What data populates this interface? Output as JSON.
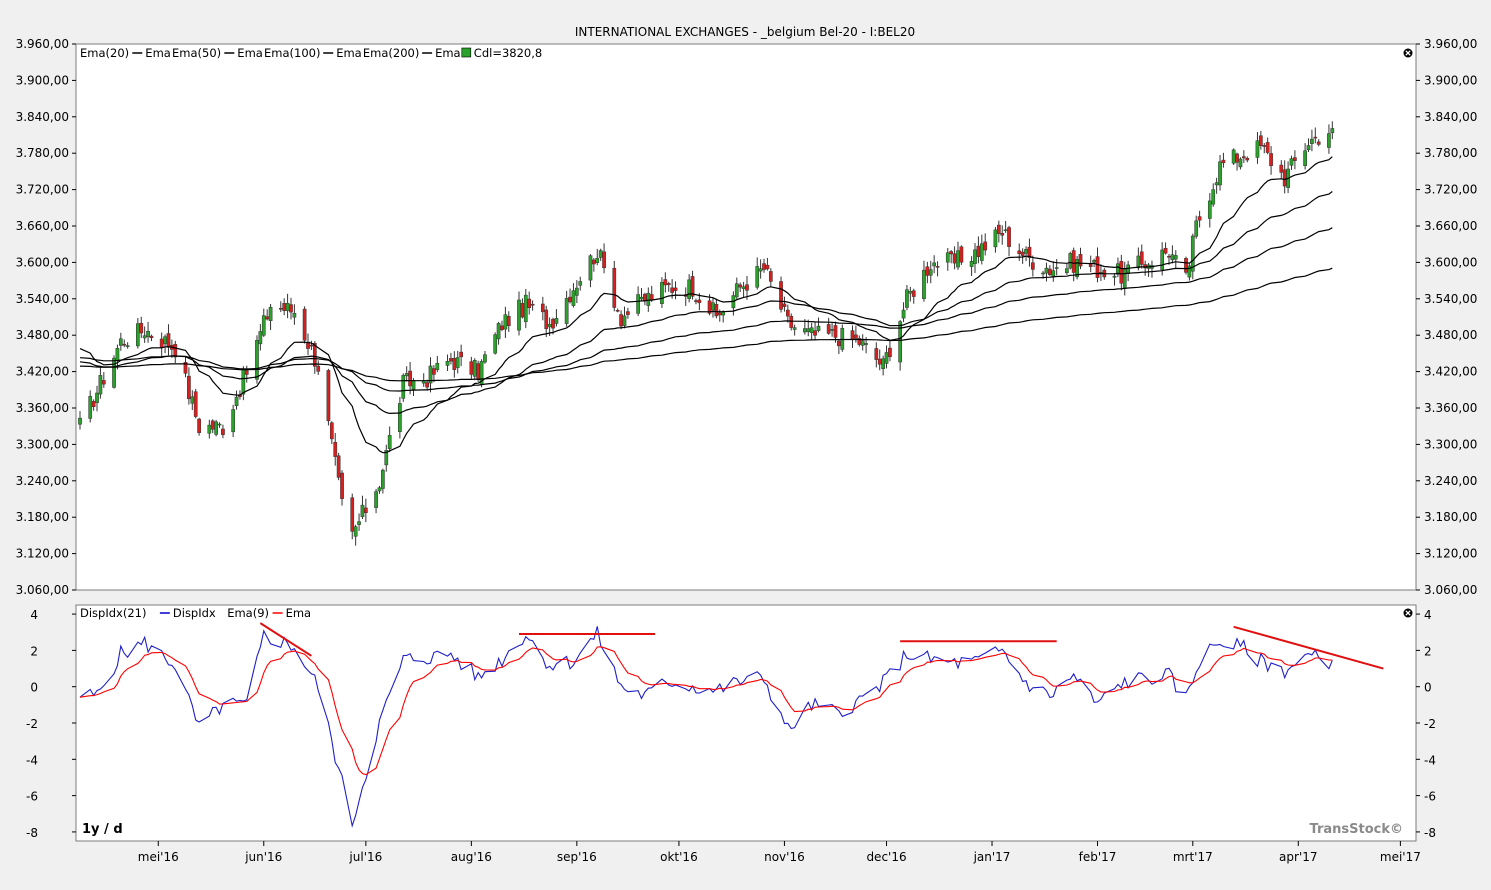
{
  "title": "INTERNATIONAL EXCHANGES - _belgium Bel-20 - I:BEL20",
  "period_label": "1y / d",
  "brand": "TransStock©",
  "price_panel": {
    "legend": [
      {
        "name": "Ema(20)",
        "suffix": "Ema",
        "color": "#000000"
      },
      {
        "name": "Ema(50)",
        "suffix": "Ema",
        "color": "#000000"
      },
      {
        "name": "Ema(100)",
        "suffix": "Ema",
        "color": "#000000"
      },
      {
        "name": "Ema(200)",
        "suffix": "Ema",
        "color": "#000000"
      },
      {
        "name": "Cdl=3820,8",
        "suffix": "",
        "color": "#2aa12a"
      }
    ],
    "y_ticks": [
      "3.960,00",
      "3.900,00",
      "3.840,00",
      "3.780,00",
      "3.720,00",
      "3.660,00",
      "3.600,00",
      "3.540,00",
      "3.480,00",
      "3.420,00",
      "3.360,00",
      "3.300,00",
      "3.240,00",
      "3.180,00",
      "3.120,00",
      "3.060,00"
    ]
  },
  "indicator_panel": {
    "legend": [
      {
        "name": "DispIdx(21)",
        "suffix": "DispIdx",
        "color": "#0000cc"
      },
      {
        "name": "Ema(9)",
        "suffix": "Ema",
        "color": "#ff0000"
      }
    ],
    "y_ticks": [
      "4",
      "2",
      "0",
      "-2",
      "-4",
      "-6",
      "-8"
    ]
  },
  "x_ticks": [
    "mei'16",
    "jun'16",
    "jul'16",
    "aug'16",
    "sep'16",
    "okt'16",
    "nov'16",
    "dec'16",
    "jan'17",
    "feb'17",
    "mrt'17",
    "apr'17",
    "mei'17"
  ],
  "colors": {
    "up": "#2aa12a",
    "down": "#d62020",
    "ema": "#000000",
    "disp": "#2020c8",
    "disp_ema": "#ff0000",
    "trendline": "#e01010"
  },
  "chart_data": [
    {
      "type": "candlestick",
      "title": "INTERNATIONAL EXCHANGES - _belgium Bel-20 - I:BEL20",
      "ylim": [
        3060,
        3960
      ],
      "x_range": [
        "2016-04-08",
        "2017-05-05"
      ],
      "last_close": 3820.8,
      "series": [
        {
          "name": "Ema(20)"
        },
        {
          "name": "Ema(50)"
        },
        {
          "name": "Ema(100)"
        },
        {
          "name": "Ema(200)"
        },
        {
          "name": "Cdl",
          "close_anchors": [
            [
              "2016-04-08",
              3330
            ],
            [
              "2016-04-20",
              3470
            ],
            [
              "2016-04-27",
              3490
            ],
            [
              "2016-05-06",
              3460
            ],
            [
              "2016-05-13",
              3330
            ],
            [
              "2016-05-20",
              3330
            ],
            [
              "2016-05-27",
              3420
            ],
            [
              "2016-06-03",
              3530
            ],
            [
              "2016-06-10",
              3520
            ],
            [
              "2016-06-17",
              3430
            ],
            [
              "2016-06-24",
              3200
            ],
            [
              "2016-06-27",
              3150
            ],
            [
              "2016-07-05",
              3240
            ],
            [
              "2016-07-12",
              3400
            ],
            [
              "2016-07-19",
              3410
            ],
            [
              "2016-07-26",
              3440
            ],
            [
              "2016-08-03",
              3420
            ],
            [
              "2016-08-10",
              3500
            ],
            [
              "2016-08-17",
              3530
            ],
            [
              "2016-08-24",
              3500
            ],
            [
              "2016-08-31",
              3560
            ],
            [
              "2016-09-07",
              3620
            ],
            [
              "2016-09-14",
              3510
            ],
            [
              "2016-09-21",
              3540
            ],
            [
              "2016-09-28",
              3560
            ],
            [
              "2016-10-05",
              3560
            ],
            [
              "2016-10-12",
              3510
            ],
            [
              "2016-10-19",
              3560
            ],
            [
              "2016-10-26",
              3590
            ],
            [
              "2016-11-02",
              3500
            ],
            [
              "2016-11-09",
              3480
            ],
            [
              "2016-11-16",
              3480
            ],
            [
              "2016-11-23",
              3470
            ],
            [
              "2016-11-30",
              3430
            ],
            [
              "2016-12-07",
              3540
            ],
            [
              "2016-12-14",
              3600
            ],
            [
              "2016-12-21",
              3600
            ],
            [
              "2016-12-28",
              3620
            ],
            [
              "2017-01-04",
              3650
            ],
            [
              "2017-01-11",
              3610
            ],
            [
              "2017-01-18",
              3590
            ],
            [
              "2017-01-25",
              3600
            ],
            [
              "2017-02-01",
              3590
            ],
            [
              "2017-02-08",
              3580
            ],
            [
              "2017-02-15",
              3600
            ],
            [
              "2017-02-22",
              3620
            ],
            [
              "2017-02-27",
              3570
            ],
            [
              "2017-03-02",
              3660
            ],
            [
              "2017-03-09",
              3760
            ],
            [
              "2017-03-16",
              3780
            ],
            [
              "2017-03-21",
              3790
            ],
            [
              "2017-03-28",
              3740
            ],
            [
              "2017-04-04",
              3800
            ],
            [
              "2017-04-11",
              3820.8
            ]
          ]
        }
      ]
    },
    {
      "type": "line",
      "title": "",
      "ylim": [
        -8.5,
        4.5
      ],
      "series": [
        {
          "name": "DispIdx(21)",
          "anchors": [
            [
              "2016-04-08",
              -0.5
            ],
            [
              "2016-04-13",
              -0.5
            ],
            [
              "2016-04-20",
              1.8
            ],
            [
              "2016-04-27",
              2.4
            ],
            [
              "2016-05-06",
              1.2
            ],
            [
              "2016-05-13",
              -2.3
            ],
            [
              "2016-05-20",
              -1.0
            ],
            [
              "2016-05-27",
              -1.0
            ],
            [
              "2016-06-01",
              2.8
            ],
            [
              "2016-06-06",
              2.5
            ],
            [
              "2016-06-10",
              2.2
            ],
            [
              "2016-06-17",
              0.0
            ],
            [
              "2016-06-22",
              -3.8
            ],
            [
              "2016-06-27",
              -7.5
            ],
            [
              "2016-07-05",
              -2.0
            ],
            [
              "2016-07-12",
              1.5
            ],
            [
              "2016-07-19",
              1.6
            ],
            [
              "2016-07-26",
              1.8
            ],
            [
              "2016-08-03",
              0.5
            ],
            [
              "2016-08-10",
              1.5
            ],
            [
              "2016-08-17",
              2.9
            ],
            [
              "2016-08-24",
              1.2
            ],
            [
              "2016-08-31",
              1.4
            ],
            [
              "2016-09-07",
              2.9
            ],
            [
              "2016-09-14",
              0.0
            ],
            [
              "2016-09-21",
              -0.5
            ],
            [
              "2016-09-28",
              0.3
            ],
            [
              "2016-10-05",
              0.0
            ],
            [
              "2016-10-12",
              -0.2
            ],
            [
              "2016-10-19",
              0.3
            ],
            [
              "2016-10-26",
              0.5
            ],
            [
              "2016-11-02",
              -2.4
            ],
            [
              "2016-11-09",
              -1.0
            ],
            [
              "2016-11-16",
              -1.4
            ],
            [
              "2016-11-23",
              -0.8
            ],
            [
              "2016-11-30",
              0.2
            ],
            [
              "2016-12-07",
              1.8
            ],
            [
              "2016-12-14",
              1.5
            ],
            [
              "2016-12-21",
              1.3
            ],
            [
              "2016-12-28",
              1.4
            ],
            [
              "2017-01-04",
              2.0
            ],
            [
              "2017-01-11",
              0.2
            ],
            [
              "2017-01-18",
              -0.5
            ],
            [
              "2017-01-25",
              0.6
            ],
            [
              "2017-02-01",
              -1.0
            ],
            [
              "2017-02-08",
              0.2
            ],
            [
              "2017-02-15",
              0.5
            ],
            [
              "2017-02-22",
              0.6
            ],
            [
              "2017-02-27",
              -0.7
            ],
            [
              "2017-03-03",
              1.5
            ],
            [
              "2017-03-09",
              2.5
            ],
            [
              "2017-03-16",
              2.1
            ],
            [
              "2017-03-21",
              1.4
            ],
            [
              "2017-03-28",
              0.9
            ],
            [
              "2017-04-04",
              1.7
            ],
            [
              "2017-04-11",
              1.4
            ]
          ]
        },
        {
          "name": "Ema(9)"
        }
      ],
      "trendlines": [
        {
          "from": [
            "2016-05-31",
            3.5
          ],
          "to": [
            "2016-06-15",
            1.7
          ]
        },
        {
          "from": [
            "2016-08-15",
            2.9
          ],
          "to": [
            "2016-09-24",
            2.9
          ]
        },
        {
          "from": [
            "2016-12-05",
            2.5
          ],
          "to": [
            "2017-01-20",
            2.5
          ]
        },
        {
          "from": [
            "2017-03-13",
            3.3
          ],
          "to": [
            "2017-04-26",
            1.0
          ]
        }
      ]
    }
  ]
}
